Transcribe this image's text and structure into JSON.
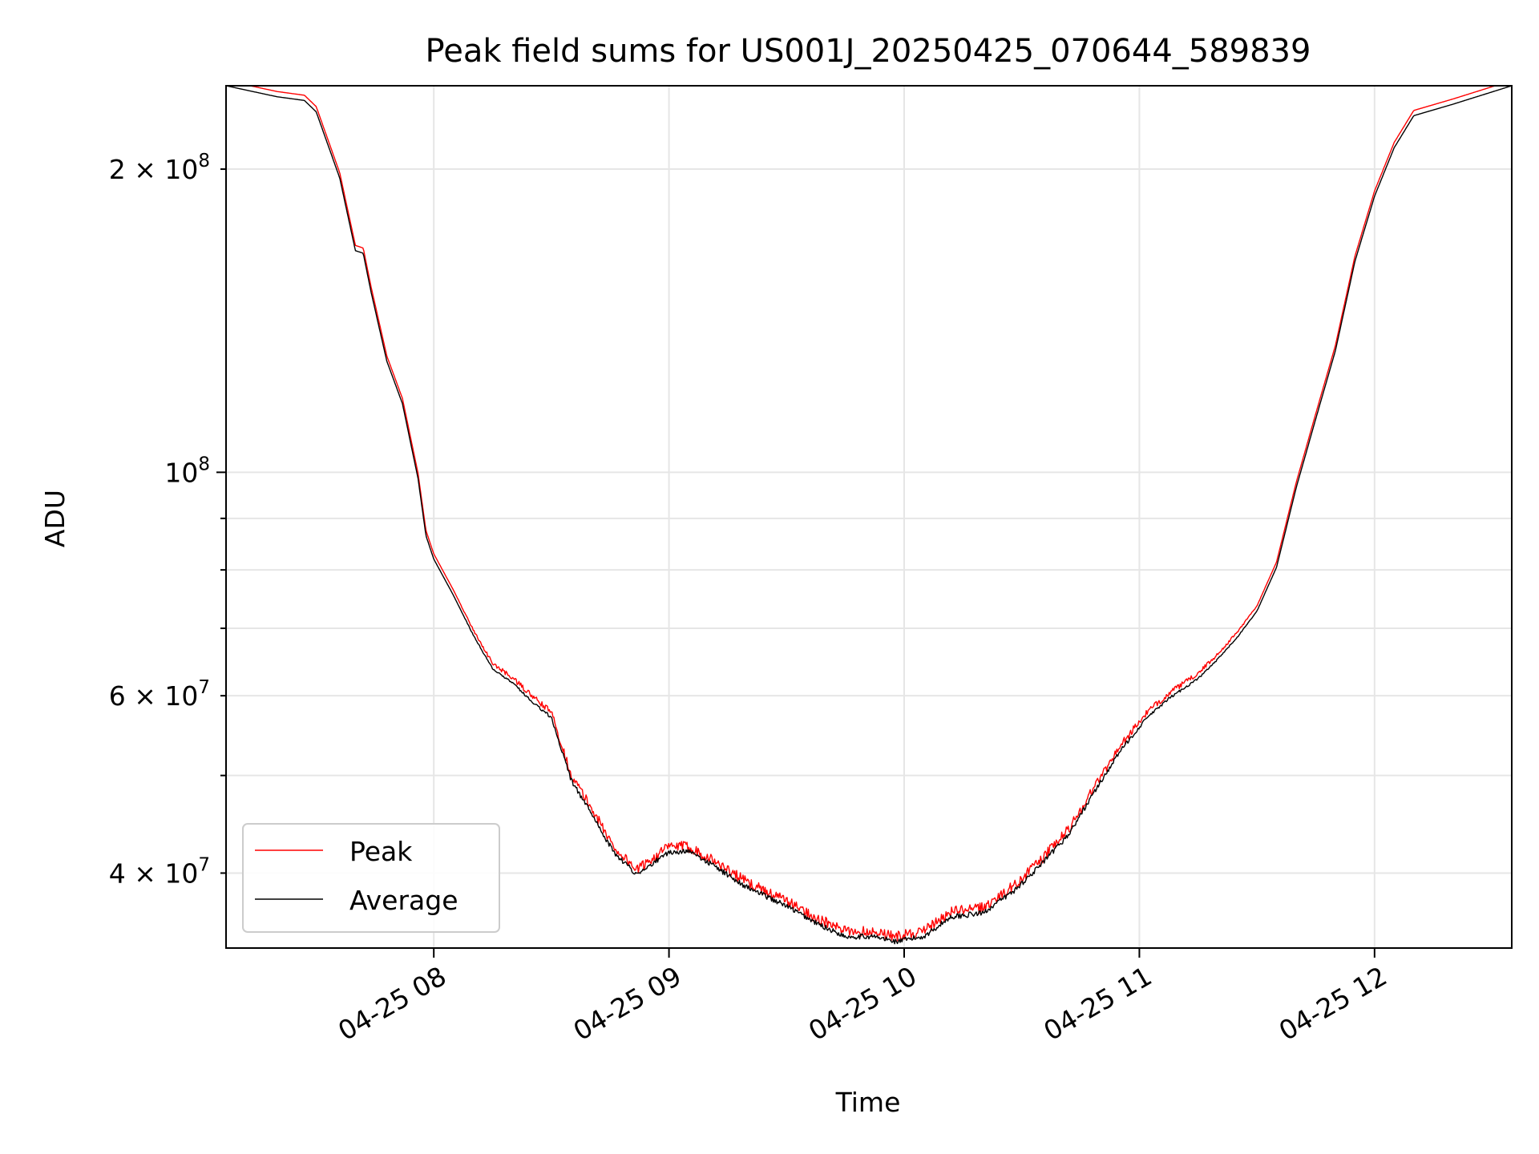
{
  "chart_data": {
    "type": "line",
    "title": "Peak field sums for US001J_20250425_070644_589839",
    "xlabel": "Time",
    "ylabel": "ADU",
    "yscale": "log",
    "xlim": [
      "2025-04-25 07:07",
      "2025-04-25 12:35"
    ],
    "ylim": [
      33700000,
      242000000
    ],
    "x_ticks": [
      {
        "value": "2025-04-25 08:00",
        "label": "04-25 08"
      },
      {
        "value": "2025-04-25 09:00",
        "label": "04-25 09"
      },
      {
        "value": "2025-04-25 10:00",
        "label": "04-25 10"
      },
      {
        "value": "2025-04-25 11:00",
        "label": "04-25 11"
      },
      {
        "value": "2025-04-25 12:00",
        "label": "04-25 12"
      }
    ],
    "y_major_ticks": [
      {
        "value": 100000000,
        "base": "10",
        "exp": "8"
      }
    ],
    "y_minor_ticks": [
      {
        "value": 40000000,
        "mantissa": "4",
        "exp": "7",
        "label": true
      },
      {
        "value": 50000000,
        "label": false
      },
      {
        "value": 60000000,
        "mantissa": "6",
        "exp": "7",
        "label": true
      },
      {
        "value": 70000000,
        "label": false
      },
      {
        "value": 80000000,
        "label": false
      },
      {
        "value": 90000000,
        "label": false
      },
      {
        "value": 200000000,
        "mantissa": "2",
        "exp": "8",
        "label": true
      }
    ],
    "grid": true,
    "legend": {
      "position": "lower left"
    },
    "series": [
      {
        "name": "Peak",
        "color": "#ff0000",
        "offset_ratio": 1.012,
        "noise_ratio": 0.012,
        "jitter": true
      },
      {
        "name": "Average",
        "color": "#000000",
        "offset_ratio": 1.0,
        "noise_ratio": 0.006,
        "jitter": true
      }
    ],
    "average_curve": {
      "x": [
        "2025-04-25 07:07",
        "2025-04-25 07:20",
        "2025-04-25 07:27",
        "2025-04-25 07:30",
        "2025-04-25 07:36",
        "2025-04-25 07:40",
        "2025-04-25 07:42",
        "2025-04-25 07:44",
        "2025-04-25 07:48",
        "2025-04-25 07:52",
        "2025-04-25 07:56",
        "2025-04-25 07:58",
        "2025-04-25 08:00",
        "2025-04-25 08:05",
        "2025-04-25 08:10",
        "2025-04-25 08:15",
        "2025-04-25 08:20",
        "2025-04-25 08:26",
        "2025-04-25 08:30",
        "2025-04-25 08:35",
        "2025-04-25 08:40",
        "2025-04-25 08:46",
        "2025-04-25 08:52",
        "2025-04-25 08:55",
        "2025-04-25 09:00",
        "2025-04-25 09:05",
        "2025-04-25 09:10",
        "2025-04-25 09:20",
        "2025-04-25 09:30",
        "2025-04-25 09:38",
        "2025-04-25 09:45",
        "2025-04-25 09:52",
        "2025-04-25 09:58",
        "2025-04-25 10:05",
        "2025-04-25 10:12",
        "2025-04-25 10:20",
        "2025-04-25 10:28",
        "2025-04-25 10:35",
        "2025-04-25 10:42",
        "2025-04-25 10:48",
        "2025-04-25 10:55",
        "2025-04-25 11:02",
        "2025-04-25 11:08",
        "2025-04-25 11:15",
        "2025-04-25 11:20",
        "2025-04-25 11:25",
        "2025-04-25 11:30",
        "2025-04-25 11:35",
        "2025-04-25 11:40",
        "2025-04-25 11:45",
        "2025-04-25 11:50",
        "2025-04-25 11:55",
        "2025-04-25 12:00",
        "2025-04-25 12:05",
        "2025-04-25 12:10",
        "2025-04-25 12:20",
        "2025-04-25 12:35"
      ],
      "y": [
        242000000,
        236000000,
        234000000,
        228000000,
        196000000,
        166000000,
        165000000,
        151000000,
        129000000,
        117000000,
        98500000,
        86500000,
        82000000,
        75500000,
        69000000,
        63800000,
        61800000,
        58800000,
        57100000,
        49500000,
        46000000,
        41900000,
        39800000,
        40700000,
        42000000,
        42000000,
        41000000,
        38700000,
        37100000,
        35600000,
        34600000,
        34600000,
        34200000,
        34600000,
        36200000,
        36500000,
        38400000,
        40800000,
        43700000,
        47800000,
        52800000,
        57100000,
        59800000,
        62400000,
        65200000,
        68600000,
        72800000,
        80500000,
        96500000,
        113000000,
        132000000,
        162000000,
        188000000,
        210000000,
        226000000,
        232000000,
        242000000
      ]
    }
  }
}
